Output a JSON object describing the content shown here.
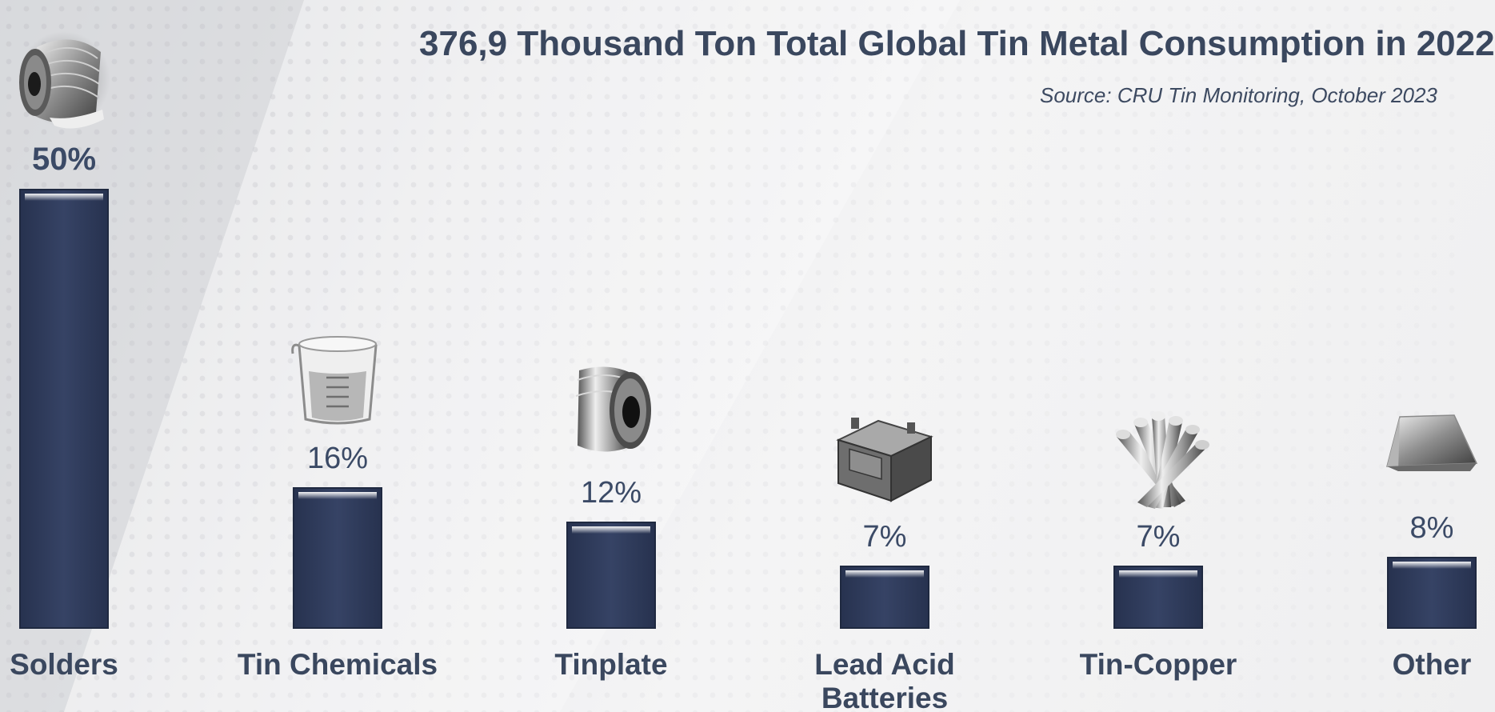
{
  "chart_data": {
    "type": "bar",
    "title": "376,9 Thousand Ton Total Global Tin Metal Consumption in 2022",
    "subtitle": "Source: CRU Tin Monitoring, October 2023",
    "categories": [
      "Solders",
      "Tin Chemicals",
      "Tinplate",
      "Lead Acid Batteries",
      "Tin-Copper",
      "Other"
    ],
    "values": [
      50,
      16,
      12,
      7,
      7,
      8
    ],
    "value_labels": [
      "50%",
      "16%",
      "12%",
      "7%",
      "7%",
      "8%"
    ],
    "icons": [
      "solder-wire-spool-icon",
      "beaker-icon",
      "steel-coil-icon",
      "car-battery-icon",
      "copper-rods-icon",
      "metal-ingot-icon"
    ],
    "unit": "%",
    "ylim": [
      0,
      50
    ],
    "grid": false,
    "legend": "none",
    "bar_color": "#333f62"
  }
}
